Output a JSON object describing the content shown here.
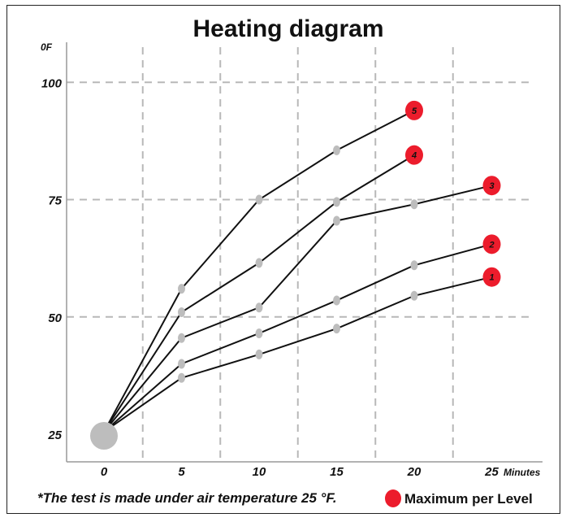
{
  "chart_data": {
    "type": "line",
    "title": "Heating diagram",
    "ylabel_unit": "0F",
    "xlabel_unit": "Minutes",
    "x_ticks": [
      "0",
      "5",
      "10",
      "15",
      "20",
      "25"
    ],
    "y_ticks": [
      "25",
      "50",
      "75",
      "100"
    ],
    "xlim": [
      0,
      25
    ],
    "ylim": [
      25,
      100
    ],
    "grid": true,
    "series": [
      {
        "label": "1",
        "points": [
          [
            0,
            25.5
          ],
          [
            5,
            37
          ],
          [
            10,
            42
          ],
          [
            15,
            47.5
          ],
          [
            20,
            54.5
          ],
          [
            25,
            58.5
          ]
        ]
      },
      {
        "label": "2",
        "points": [
          [
            0,
            25.5
          ],
          [
            5,
            40
          ],
          [
            10,
            46.5
          ],
          [
            15,
            53.5
          ],
          [
            20,
            61
          ],
          [
            25,
            65.5
          ]
        ]
      },
      {
        "label": "3",
        "points": [
          [
            0,
            25.5
          ],
          [
            5,
            45.5
          ],
          [
            10,
            52
          ],
          [
            15,
            70.5
          ],
          [
            20,
            74
          ],
          [
            25,
            78
          ]
        ]
      },
      {
        "label": "4",
        "points": [
          [
            0,
            25.5
          ],
          [
            5,
            51
          ],
          [
            10,
            61.5
          ],
          [
            15,
            74.5
          ],
          [
            20,
            84.5
          ]
        ]
      },
      {
        "label": "5",
        "points": [
          [
            0,
            25.5
          ],
          [
            5,
            56
          ],
          [
            10,
            75
          ],
          [
            15,
            85.5
          ],
          [
            20,
            94
          ]
        ]
      }
    ],
    "colors": {
      "marker": "#ec1c2c",
      "point": "#bdbdbd",
      "line": "#111111",
      "grid": "#b8b8b8"
    }
  },
  "footnote": "*The test is made under air temperature 25 °F.",
  "legend": {
    "label": "Maximum per Level",
    "position": "bottom-right"
  }
}
